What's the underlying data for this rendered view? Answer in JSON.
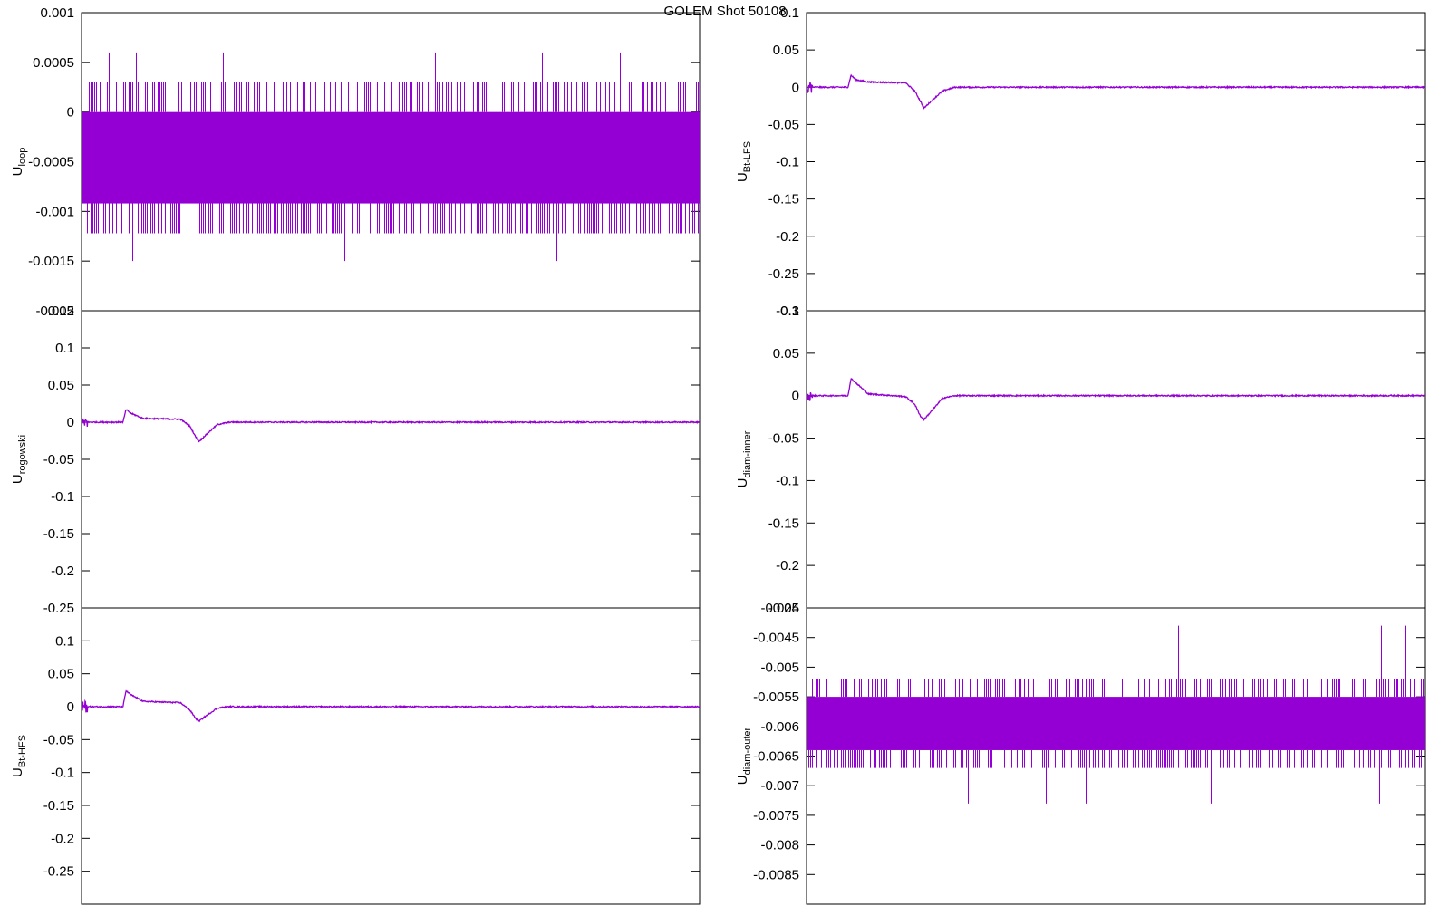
{
  "title": "GOLEM Shot 50108",
  "colors": {
    "trace": "#9400d3",
    "axis": "#000000",
    "background": "#ffffff"
  },
  "chart_data": [
    {
      "type": "line",
      "id": "uloop",
      "ylabel": "U",
      "ylabel_sub": "loop",
      "ylim": [
        -0.002,
        0.001
      ],
      "yticks": [
        0.001,
        0.0005,
        0,
        -0.0005,
        -0.001,
        -0.0015,
        -0.002
      ],
      "ytick_labels": [
        "0.001",
        "0.0005",
        "0",
        "-0.0005",
        "-0.001",
        "-0.0015",
        "-0.002"
      ],
      "grid": false,
      "series": [
        {
          "values": [],
          "noise": {
            "base_low": -0.00092,
            "base_high": 0.0,
            "spikes_high": 0.0003,
            "spikes_low": -0.00122,
            "rare_high": 0.0006,
            "rare_low": -0.0015
          }
        }
      ]
    },
    {
      "type": "line",
      "id": "ubt-lfs",
      "ylabel": "U",
      "ylabel_sub": "Bt-LFS",
      "ylim": [
        -0.3,
        0.1
      ],
      "yticks": [
        0.1,
        0.05,
        0,
        -0.05,
        -0.1,
        -0.15,
        -0.2,
        -0.25,
        -0.3
      ],
      "ytick_labels": [
        "0.1",
        "0.05",
        "0",
        "-0.05",
        "-0.1",
        "-0.15",
        "-0.2",
        "-0.25",
        "-0.3"
      ],
      "grid": false,
      "series": [
        {
          "values": [
            [
              0.0,
              0.0
            ],
            [
              0.067,
              0.0
            ],
            [
              0.072,
              0.016
            ],
            [
              0.08,
              0.01
            ],
            [
              0.1,
              0.007
            ],
            [
              0.16,
              0.006
            ],
            [
              0.175,
              -0.005
            ],
            [
              0.185,
              -0.02
            ],
            [
              0.19,
              -0.028
            ],
            [
              0.2,
              -0.02
            ],
            [
              0.22,
              -0.005
            ],
            [
              0.24,
              0.0
            ],
            [
              1.0,
              0.0
            ]
          ]
        }
      ]
    },
    {
      "type": "line",
      "id": "urogowski",
      "ylabel": "U",
      "ylabel_sub": "rogowski",
      "ylim": [
        -0.25,
        0.15
      ],
      "yticks": [
        0.15,
        0.1,
        0.05,
        0,
        -0.05,
        -0.1,
        -0.15,
        -0.2,
        -0.25
      ],
      "ytick_labels": [
        "0.15",
        "0.1",
        "0.05",
        "0",
        "-0.05",
        "-0.1",
        "-0.15",
        "-0.2",
        "-0.25"
      ],
      "grid": false,
      "series": [
        {
          "values": [
            [
              0.0,
              0.0
            ],
            [
              0.067,
              0.0
            ],
            [
              0.072,
              0.017
            ],
            [
              0.08,
              0.012
            ],
            [
              0.1,
              0.005
            ],
            [
              0.16,
              0.004
            ],
            [
              0.175,
              -0.005
            ],
            [
              0.185,
              -0.02
            ],
            [
              0.19,
              -0.026
            ],
            [
              0.2,
              -0.018
            ],
            [
              0.22,
              -0.003
            ],
            [
              0.24,
              0.0
            ],
            [
              1.0,
              0.0
            ]
          ]
        }
      ]
    },
    {
      "type": "line",
      "id": "udiam-inner",
      "ylabel": "U",
      "ylabel_sub": "diam-inner",
      "ylim": [
        -0.25,
        0.1
      ],
      "yticks": [
        0.1,
        0.05,
        0,
        -0.05,
        -0.1,
        -0.15,
        -0.2,
        -0.25
      ],
      "ytick_labels": [
        "0.1",
        "0.05",
        "0",
        "-0.05",
        "-0.1",
        "-0.15",
        "-0.2",
        "-0.25"
      ],
      "grid": false,
      "series": [
        {
          "values": [
            [
              0.0,
              0.0
            ],
            [
              0.067,
              0.0
            ],
            [
              0.072,
              0.02
            ],
            [
              0.08,
              0.015
            ],
            [
              0.1,
              0.002
            ],
            [
              0.16,
              -0.001
            ],
            [
              0.175,
              -0.01
            ],
            [
              0.185,
              -0.025
            ],
            [
              0.19,
              -0.028
            ],
            [
              0.2,
              -0.02
            ],
            [
              0.22,
              -0.003
            ],
            [
              0.24,
              0.0
            ],
            [
              1.0,
              0.0
            ]
          ]
        }
      ]
    },
    {
      "type": "line",
      "id": "ubt-hfs",
      "ylabel": "U",
      "ylabel_sub": "Bt-HFS",
      "ylim": [
        -0.3,
        0.15
      ],
      "yticks": [
        0.1,
        0.05,
        0,
        -0.05,
        -0.1,
        -0.15,
        -0.2,
        -0.25
      ],
      "ytick_labels": [
        "0.1",
        "0.05",
        "0",
        "-0.05",
        "-0.1",
        "-0.15",
        "-0.2",
        "-0.25"
      ],
      "grid": false,
      "series": [
        {
          "values": [
            [
              0.0,
              0.0
            ],
            [
              0.067,
              0.0
            ],
            [
              0.072,
              0.024
            ],
            [
              0.08,
              0.018
            ],
            [
              0.1,
              0.008
            ],
            [
              0.16,
              0.006
            ],
            [
              0.175,
              -0.005
            ],
            [
              0.185,
              -0.018
            ],
            [
              0.19,
              -0.022
            ],
            [
              0.2,
              -0.015
            ],
            [
              0.22,
              -0.002
            ],
            [
              0.24,
              0.0
            ],
            [
              1.0,
              0.0
            ]
          ]
        }
      ]
    },
    {
      "type": "line",
      "id": "udiam-outer",
      "ylabel": "U",
      "ylabel_sub": "diam-outer",
      "ylim": [
        -0.009,
        -0.004
      ],
      "yticks": [
        -0.004,
        -0.0045,
        -0.005,
        -0.0055,
        -0.006,
        -0.0065,
        -0.007,
        -0.0075,
        -0.008,
        -0.0085
      ],
      "ytick_labels": [
        "-0.004",
        "-0.0045",
        "-0.005",
        "-0.0055",
        "-0.006",
        "-0.0065",
        "-0.007",
        "-0.0075",
        "-0.008",
        "-0.0085"
      ],
      "grid": false,
      "series": [
        {
          "values": [],
          "noise": {
            "base_low": -0.0064,
            "base_high": -0.0055,
            "spikes_high": -0.0052,
            "spikes_low": -0.0067,
            "rare_high": -0.0043,
            "rare_low": -0.0073
          }
        }
      ]
    }
  ]
}
